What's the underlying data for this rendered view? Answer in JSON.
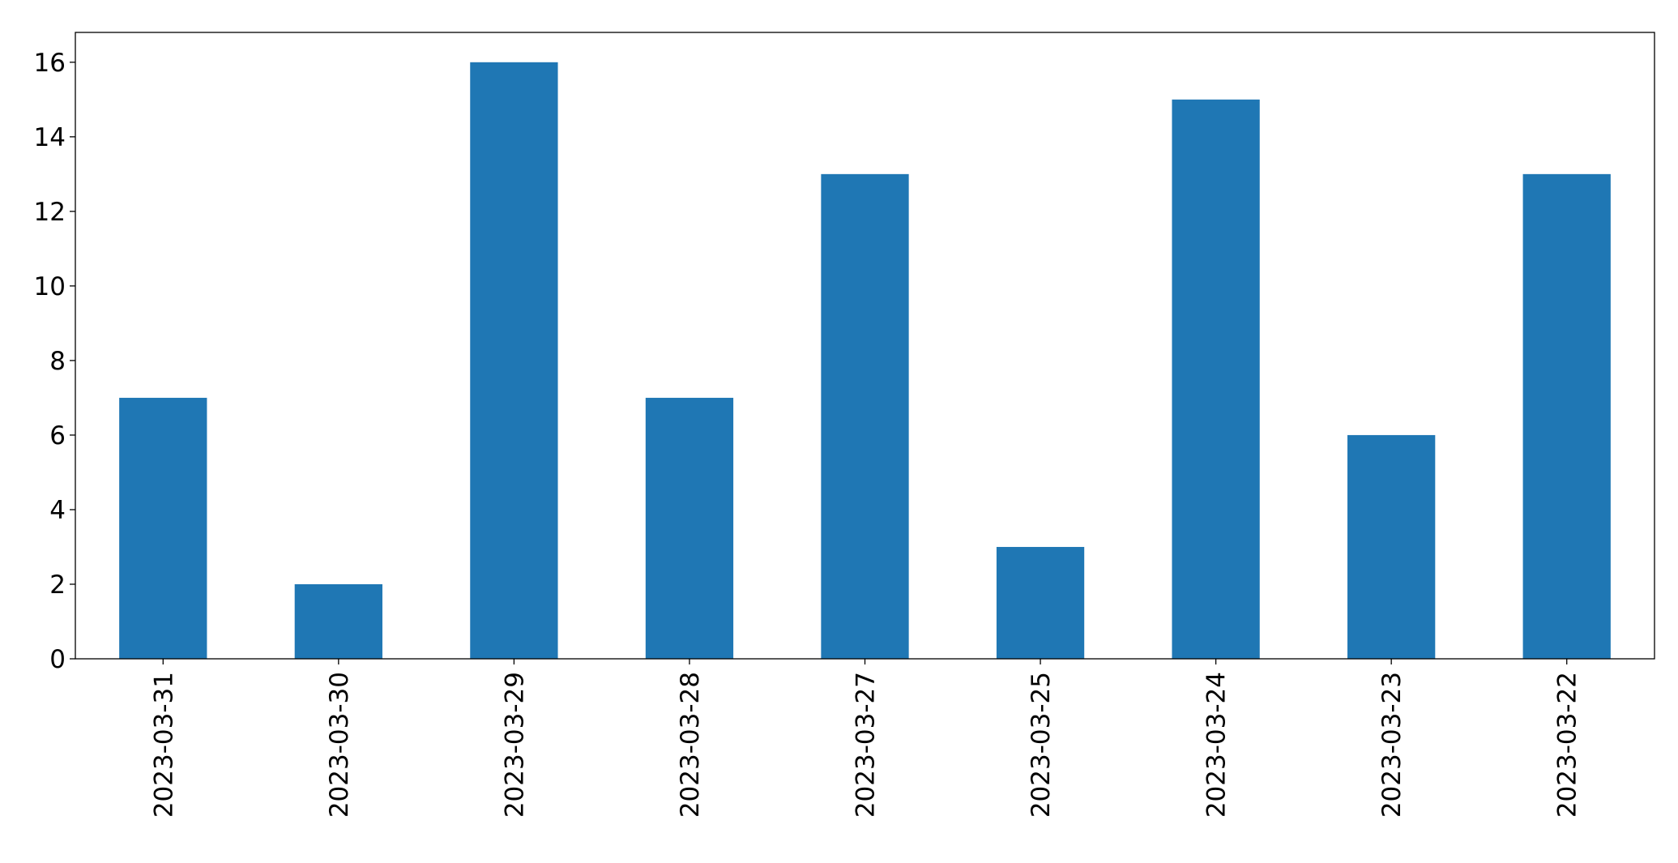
{
  "chart_data": {
    "type": "bar",
    "title": "",
    "xlabel": "",
    "ylabel": "",
    "categories": [
      "2023-03-31",
      "2023-03-30",
      "2023-03-29",
      "2023-03-28",
      "2023-03-27",
      "2023-03-25",
      "2023-03-24",
      "2023-03-23",
      "2023-03-22"
    ],
    "values": [
      7,
      2,
      16,
      7,
      13,
      3,
      15,
      6,
      13
    ],
    "ylim": [
      0,
      16.8
    ],
    "yticks": [
      "0",
      "2",
      "4",
      "6",
      "8",
      "10",
      "12",
      "14",
      "16"
    ],
    "grid": false,
    "legend": "none",
    "bar_color": "#1f77b4"
  }
}
